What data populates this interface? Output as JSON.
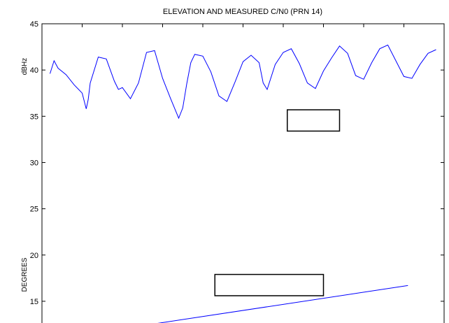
{
  "chart_data": {
    "type": "line",
    "title": "ELEVATION AND MEASURED C/N0 (PRN 14)",
    "ylabel_cn0": "dBHz",
    "ylabel_elevation": "DEGREES",
    "ylim": [
      12.5,
      45
    ],
    "yticks": [
      15,
      20,
      25,
      30,
      35,
      40,
      45
    ],
    "xlim": [
      0,
      1
    ],
    "grid": false,
    "line_color": "#0000ff",
    "series": [
      {
        "key": "cn0",
        "x": [
          0.02,
          0.03,
          0.04,
          0.06,
          0.08,
          0.1,
          0.11,
          0.115,
          0.12,
          0.14,
          0.16,
          0.18,
          0.19,
          0.2,
          0.22,
          0.24,
          0.26,
          0.28,
          0.3,
          0.32,
          0.34,
          0.35,
          0.36,
          0.37,
          0.38,
          0.4,
          0.42,
          0.44,
          0.46,
          0.48,
          0.5,
          0.52,
          0.54,
          0.55,
          0.56,
          0.58,
          0.6,
          0.62,
          0.64,
          0.66,
          0.68,
          0.7,
          0.72,
          0.74,
          0.76,
          0.78,
          0.8,
          0.82,
          0.84,
          0.86,
          0.88,
          0.9,
          0.92,
          0.94,
          0.96,
          0.98
        ],
        "y": [
          39.6,
          41.0,
          40.2,
          39.5,
          38.4,
          37.5,
          35.8,
          36.8,
          38.6,
          41.4,
          41.2,
          38.8,
          37.9,
          38.1,
          36.9,
          38.6,
          41.9,
          42.1,
          39.1,
          36.9,
          34.8,
          35.9,
          38.5,
          40.8,
          41.7,
          41.5,
          39.8,
          37.2,
          36.6,
          38.7,
          40.9,
          41.6,
          40.8,
          38.6,
          37.9,
          40.6,
          41.9,
          42.3,
          40.7,
          38.6,
          38.0,
          39.9,
          41.3,
          42.6,
          41.8,
          39.4,
          39.0,
          40.8,
          42.3,
          42.7,
          41.0,
          39.3,
          39.1,
          40.6,
          41.8,
          42.2
        ]
      },
      {
        "key": "elevation",
        "x": [
          0.27,
          0.91
        ],
        "y": [
          12.5,
          16.7
        ]
      }
    ],
    "annotations": [
      {
        "kind": "box",
        "near": "below the C/N0 trace",
        "y_range": [
          33.4,
          35.7
        ],
        "x_range": [
          0.61,
          0.74
        ]
      },
      {
        "kind": "box",
        "near": "above the elevation line",
        "y_range": [
          15.6,
          17.9
        ],
        "x_range": [
          0.43,
          0.7
        ]
      }
    ]
  }
}
